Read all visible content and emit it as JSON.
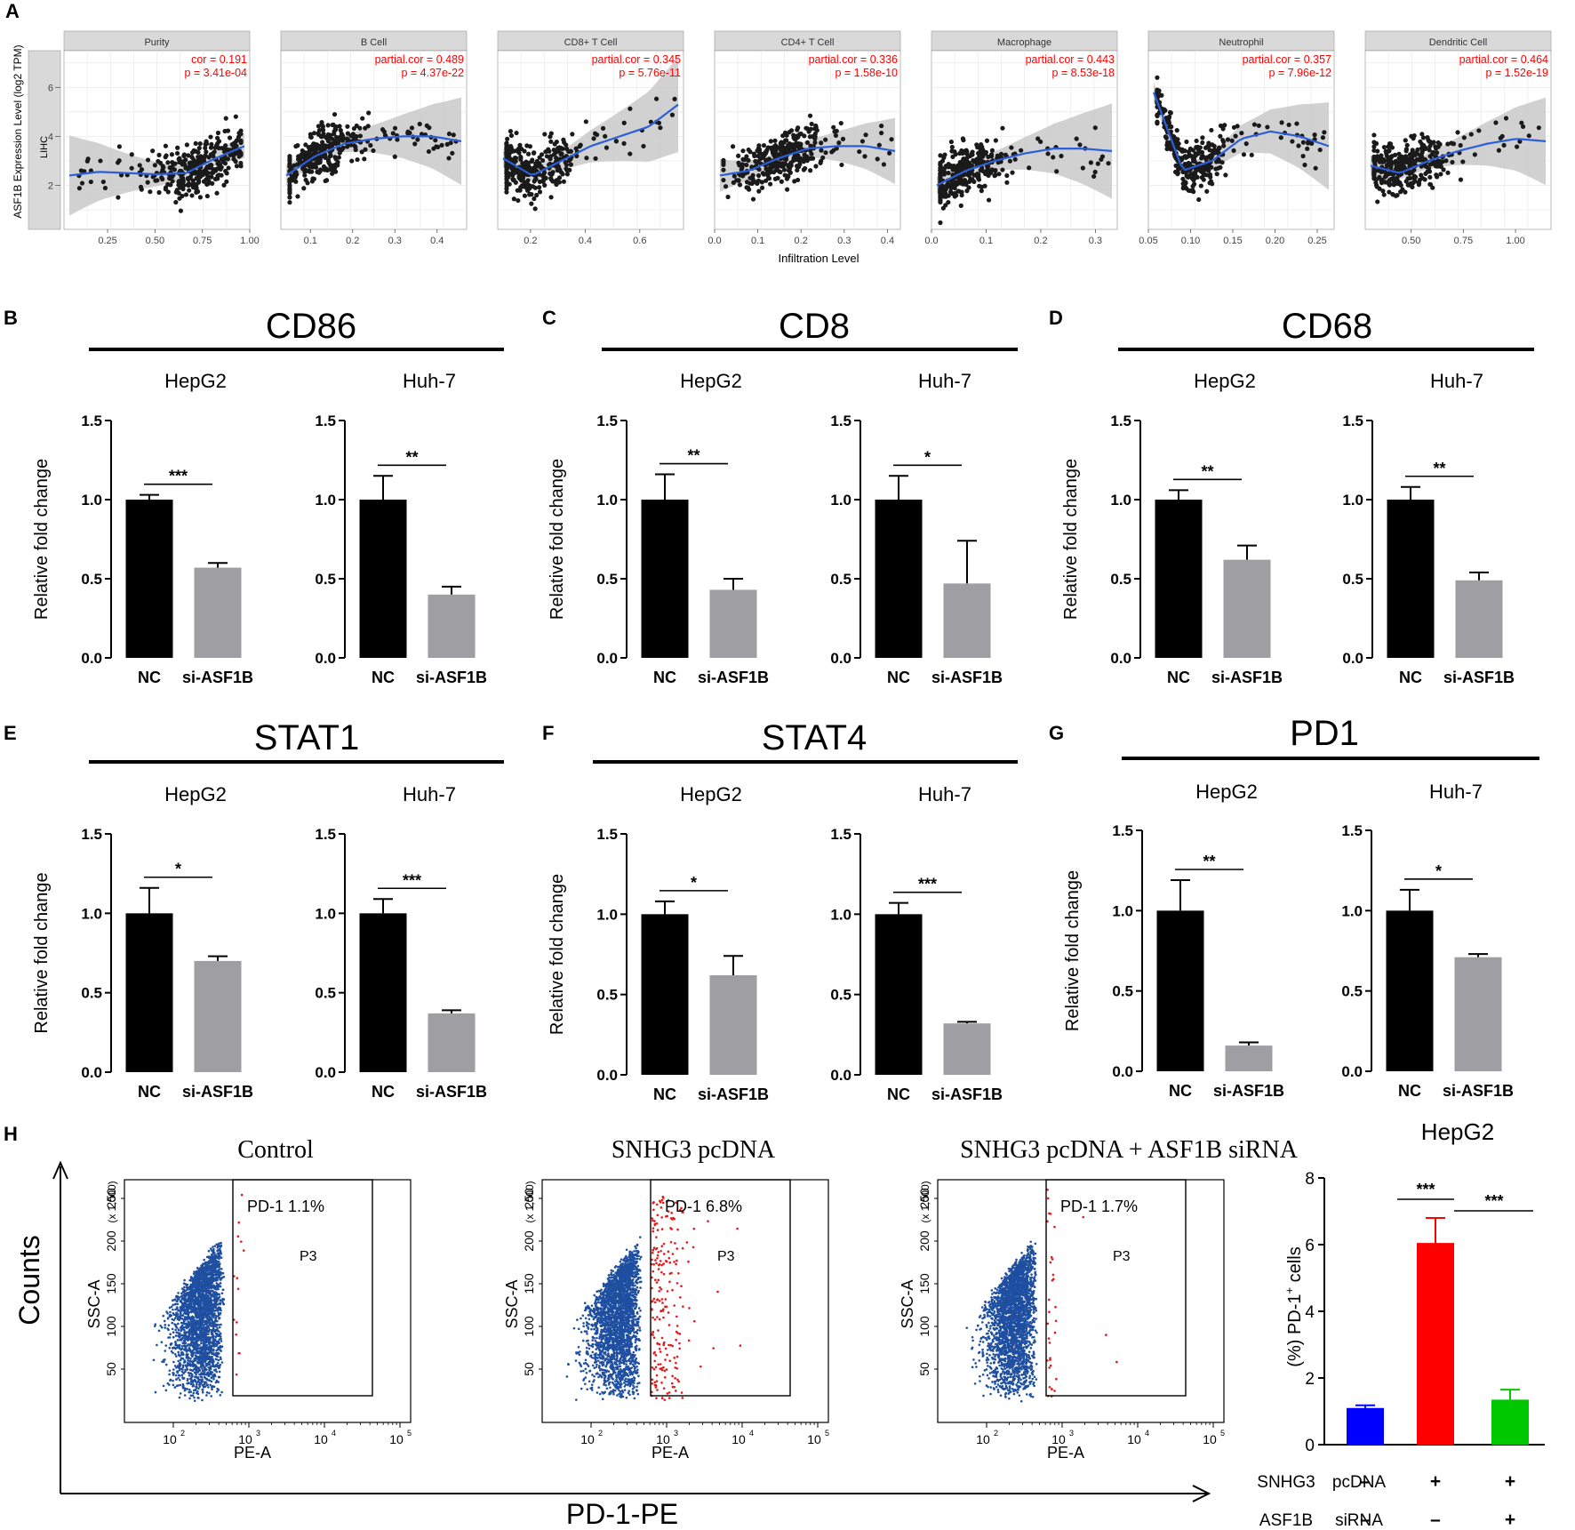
{
  "figure": {
    "panelA": {
      "letter": "A",
      "ylabel": "ASF1B Expression Level (log2 TPM)",
      "row_label": "LIHC",
      "xlabel": "Infiltration Level",
      "yticks": [
        "2",
        "4",
        "6"
      ],
      "stat_color": "#ff0000",
      "smooth_color": "#2b5fd9",
      "band_color": "#c9c9c9",
      "strip_color": "#d9d9d9",
      "facets": [
        {
          "title": "Purity",
          "stat1": "cor = 0.191",
          "stat2": "p = 3.41e-04",
          "xticks": [
            "0.25",
            "0.50",
            "0.75",
            "1.00"
          ]
        },
        {
          "title": "B Cell",
          "stat1": "partial.cor = 0.489",
          "stat2": "p = 4.37e-22",
          "xticks": [
            "0.1",
            "0.2",
            "0.3",
            "0.4"
          ]
        },
        {
          "title": "CD8+ T Cell",
          "stat1": "partial.cor = 0.345",
          "stat2": "p = 5.76e-11",
          "xticks": [
            "0.2",
            "0.4",
            "0.6"
          ]
        },
        {
          "title": "CD4+ T Cell",
          "stat1": "partial.cor = 0.336",
          "stat2": "p = 1.58e-10",
          "xticks": [
            "0.0",
            "0.1",
            "0.2",
            "0.3",
            "0.4"
          ]
        },
        {
          "title": "Macrophage",
          "stat1": "partial.cor = 0.443",
          "stat2": "p = 8.53e-18",
          "xticks": [
            "0.0",
            "0.1",
            "0.2",
            "0.3"
          ]
        },
        {
          "title": "Neutrophil",
          "stat1": "partial.cor = 0.357",
          "stat2": "p = 7.96e-12",
          "xticks": [
            "0.05",
            "0.10",
            "0.15",
            "0.20",
            "0.25"
          ]
        },
        {
          "title": "Dendritic Cell",
          "stat1": "partial.cor = 0.464",
          "stat2": "p = 1.52e-19",
          "xticks": [
            "0.50",
            "0.75",
            "1.00"
          ]
        }
      ]
    },
    "bar_groups": {
      "ylabel": "Relative fold change",
      "yticks": [
        "0.0",
        "0.5",
        "1.0",
        "1.5"
      ],
      "nc_color": "#000000",
      "si_color": "#9e9ea3",
      "groups": [
        {
          "letter": "B",
          "title": "CD86"
        },
        {
          "letter": "C",
          "title": "CD8"
        },
        {
          "letter": "D",
          "title": "CD68"
        },
        {
          "letter": "E",
          "title": "STAT1"
        },
        {
          "letter": "F",
          "title": "STAT4"
        },
        {
          "letter": "G",
          "title": "PD1"
        }
      ]
    },
    "panelH": {
      "letter": "H",
      "counts_label": "Counts",
      "pd1pe_label": "PD-1-PE",
      "gate_color": "#e31a1c",
      "cell_color": "#1f4fa0",
      "flow": [
        {
          "title": "Control",
          "gate_pct": "PD-1  1.1%",
          "gate_name": "P3"
        },
        {
          "title": "SNHG3 pcDNA",
          "gate_pct": "PD-1  6.8%",
          "gate_name": "P3"
        },
        {
          "title": "SNHG3 pcDNA + ASF1B siRNA",
          "gate_pct": "PD-1  1.7%",
          "gate_name": "P3"
        }
      ],
      "flow_ylabel": "SSC-A",
      "flow_xlabel": "PE-A",
      "flow_yunit": "(x 1,000)",
      "flow_yticks": [
        "50",
        "100",
        "150",
        "200",
        "250"
      ],
      "flow_xticks": [
        "10",
        "10",
        "10",
        "10"
      ],
      "flow_xexps": [
        "2",
        "3",
        "4",
        "5"
      ],
      "bar_title": "HepG2",
      "bar_ylabel": "(%) PD-1",
      "bar_ylabel_sup": "+",
      "bar_ylabel_tail": " cells",
      "bar_yticks": [
        "0",
        "2",
        "4",
        "6",
        "8"
      ],
      "bar_colors": [
        "#0000ff",
        "#ff0000",
        "#00c800"
      ],
      "sig": [
        "***",
        "***"
      ],
      "cond_rows": [
        {
          "gene": "SNHG3",
          "agent": "pcDNA",
          "marks": [
            "–",
            "+",
            "+"
          ]
        },
        {
          "gene": "ASF1B",
          "agent": "siRNA",
          "marks": [
            "–",
            "–",
            "+"
          ]
        }
      ]
    }
  },
  "chart_data": [
    {
      "type": "scatter",
      "panel": "A-Purity",
      "title": "Purity",
      "xlabel": "Infiltration Level",
      "ylabel": "ASF1B Expression Level (log2 TPM)",
      "xlim": [
        0.02,
        1.0
      ],
      "ylim": [
        0.2,
        7.5
      ],
      "annotation": "cor = 0.191, p = 3.41e-04"
    },
    {
      "type": "scatter",
      "panel": "A-B Cell",
      "title": "B Cell",
      "xlim": [
        0.03,
        0.47
      ],
      "ylim": [
        0.2,
        7.5
      ],
      "annotation": "partial.cor = 0.489, p = 4.37e-22"
    },
    {
      "type": "scatter",
      "panel": "A-CD8+ T Cell",
      "title": "CD8+ T Cell",
      "xlim": [
        0.08,
        0.76
      ],
      "ylim": [
        0.2,
        7.5
      ],
      "annotation": "partial.cor = 0.345, p = 5.76e-11"
    },
    {
      "type": "scatter",
      "panel": "A-CD4+ T Cell",
      "title": "CD4+ T Cell",
      "xlim": [
        0.0,
        0.43
      ],
      "ylim": [
        0.2,
        7.5
      ],
      "annotation": "partial.cor = 0.336, p = 1.58e-10"
    },
    {
      "type": "scatter",
      "panel": "A-Macrophage",
      "title": "Macrophage",
      "xlim": [
        0.0,
        0.34
      ],
      "ylim": [
        0.2,
        7.5
      ],
      "annotation": "partial.cor = 0.443, p = 8.53e-18"
    },
    {
      "type": "scatter",
      "panel": "A-Neutrophil",
      "title": "Neutrophil",
      "xlim": [
        0.05,
        0.27
      ],
      "ylim": [
        0.2,
        7.5
      ],
      "annotation": "partial.cor = 0.357, p = 7.96e-12"
    },
    {
      "type": "scatter",
      "panel": "A-Dendritic Cell",
      "title": "Dendritic Cell",
      "xlim": [
        0.28,
        1.17
      ],
      "ylim": [
        0.2,
        7.5
      ],
      "annotation": "partial.cor = 0.464, p = 1.52e-19"
    },
    {
      "type": "bar",
      "panel": "B",
      "title": "CD86",
      "subtitle": "HepG2",
      "categories": [
        "NC",
        "si-ASF1B"
      ],
      "values": [
        1.0,
        0.57
      ],
      "errors": [
        0.03,
        0.03
      ],
      "significance": "***",
      "ylim": [
        0,
        1.5
      ],
      "ylabel": "Relative fold change"
    },
    {
      "type": "bar",
      "panel": "B",
      "title": "CD86",
      "subtitle": "Huh-7",
      "categories": [
        "NC",
        "si-ASF1B"
      ],
      "values": [
        1.0,
        0.4
      ],
      "errors": [
        0.15,
        0.05
      ],
      "significance": "**",
      "ylim": [
        0,
        1.5
      ]
    },
    {
      "type": "bar",
      "panel": "C",
      "title": "CD8",
      "subtitle": "HepG2",
      "categories": [
        "NC",
        "si-ASF1B"
      ],
      "values": [
        1.0,
        0.43
      ],
      "errors": [
        0.16,
        0.07
      ],
      "significance": "**",
      "ylim": [
        0,
        1.5
      ],
      "ylabel": "Relative fold change"
    },
    {
      "type": "bar",
      "panel": "C",
      "title": "CD8",
      "subtitle": "Huh-7",
      "categories": [
        "NC",
        "si-ASF1B"
      ],
      "values": [
        1.0,
        0.47
      ],
      "errors": [
        0.15,
        0.27
      ],
      "significance": "*",
      "ylim": [
        0,
        1.5
      ]
    },
    {
      "type": "bar",
      "panel": "D",
      "title": "CD68",
      "subtitle": "HepG2",
      "categories": [
        "NC",
        "si-ASF1B"
      ],
      "values": [
        1.0,
        0.62
      ],
      "errors": [
        0.06,
        0.09
      ],
      "significance": "**",
      "ylim": [
        0,
        1.5
      ],
      "ylabel": "Relative fold change"
    },
    {
      "type": "bar",
      "panel": "D",
      "title": "CD68",
      "subtitle": "Huh-7",
      "categories": [
        "NC",
        "si-ASF1B"
      ],
      "values": [
        1.0,
        0.49
      ],
      "errors": [
        0.08,
        0.05
      ],
      "significance": "**",
      "ylim": [
        0,
        1.5
      ]
    },
    {
      "type": "bar",
      "panel": "E",
      "title": "STAT1",
      "subtitle": "HepG2",
      "categories": [
        "NC",
        "si-ASF1B"
      ],
      "values": [
        1.0,
        0.7
      ],
      "errors": [
        0.16,
        0.03
      ],
      "significance": "*",
      "ylim": [
        0,
        1.5
      ],
      "ylabel": "Relative fold change"
    },
    {
      "type": "bar",
      "panel": "E",
      "title": "STAT1",
      "subtitle": "Huh-7",
      "categories": [
        "NC",
        "si-ASF1B"
      ],
      "values": [
        1.0,
        0.37
      ],
      "errors": [
        0.09,
        0.02
      ],
      "significance": "***",
      "ylim": [
        0,
        1.5
      ]
    },
    {
      "type": "bar",
      "panel": "F",
      "title": "STAT4",
      "subtitle": "HepG2",
      "categories": [
        "NC",
        "si-ASF1B"
      ],
      "values": [
        1.0,
        0.62
      ],
      "errors": [
        0.08,
        0.12
      ],
      "significance": "*",
      "ylim": [
        0,
        1.5
      ],
      "ylabel": "Relative fold change"
    },
    {
      "type": "bar",
      "panel": "F",
      "title": "STAT4",
      "subtitle": "Huh-7",
      "categories": [
        "NC",
        "si-ASF1B"
      ],
      "values": [
        1.0,
        0.32
      ],
      "errors": [
        0.07,
        0.01
      ],
      "significance": "***",
      "ylim": [
        0,
        1.5
      ]
    },
    {
      "type": "bar",
      "panel": "G",
      "title": "PD1",
      "subtitle": "HepG2",
      "categories": [
        "NC",
        "si-ASF1B"
      ],
      "values": [
        1.0,
        0.16
      ],
      "errors": [
        0.19,
        0.02
      ],
      "significance": "**",
      "ylim": [
        0,
        1.5
      ],
      "ylabel": "Relative fold change"
    },
    {
      "type": "bar",
      "panel": "G",
      "title": "PD1",
      "subtitle": "Huh-7",
      "categories": [
        "NC",
        "si-ASF1B"
      ],
      "values": [
        1.0,
        0.71
      ],
      "errors": [
        0.13,
        0.02
      ],
      "significance": "*",
      "ylim": [
        0,
        1.5
      ]
    },
    {
      "type": "bar",
      "panel": "H",
      "title": "HepG2",
      "categories": [
        "Control",
        "SNHG3 pcDNA",
        "SNHG3 pcDNA + ASF1B siRNA"
      ],
      "values": [
        1.1,
        6.05,
        1.35
      ],
      "errors": [
        0.08,
        0.75,
        0.3
      ],
      "ylim": [
        0,
        8
      ],
      "ylabel": "(%) PD-1+ cells",
      "significance": [
        "***",
        "***"
      ]
    },
    {
      "type": "scatter",
      "panel": "H-flow",
      "series": [
        {
          "name": "Control",
          "gate_percent": 1.1,
          "gate": "P3"
        },
        {
          "name": "SNHG3 pcDNA",
          "gate_percent": 6.8,
          "gate": "P3"
        },
        {
          "name": "SNHG3 pcDNA + ASF1B siRNA",
          "gate_percent": 1.7,
          "gate": "P3"
        }
      ],
      "xlabel": "PE-A",
      "ylabel": "SSC-A",
      "ylim": [
        0,
        260
      ]
    }
  ]
}
